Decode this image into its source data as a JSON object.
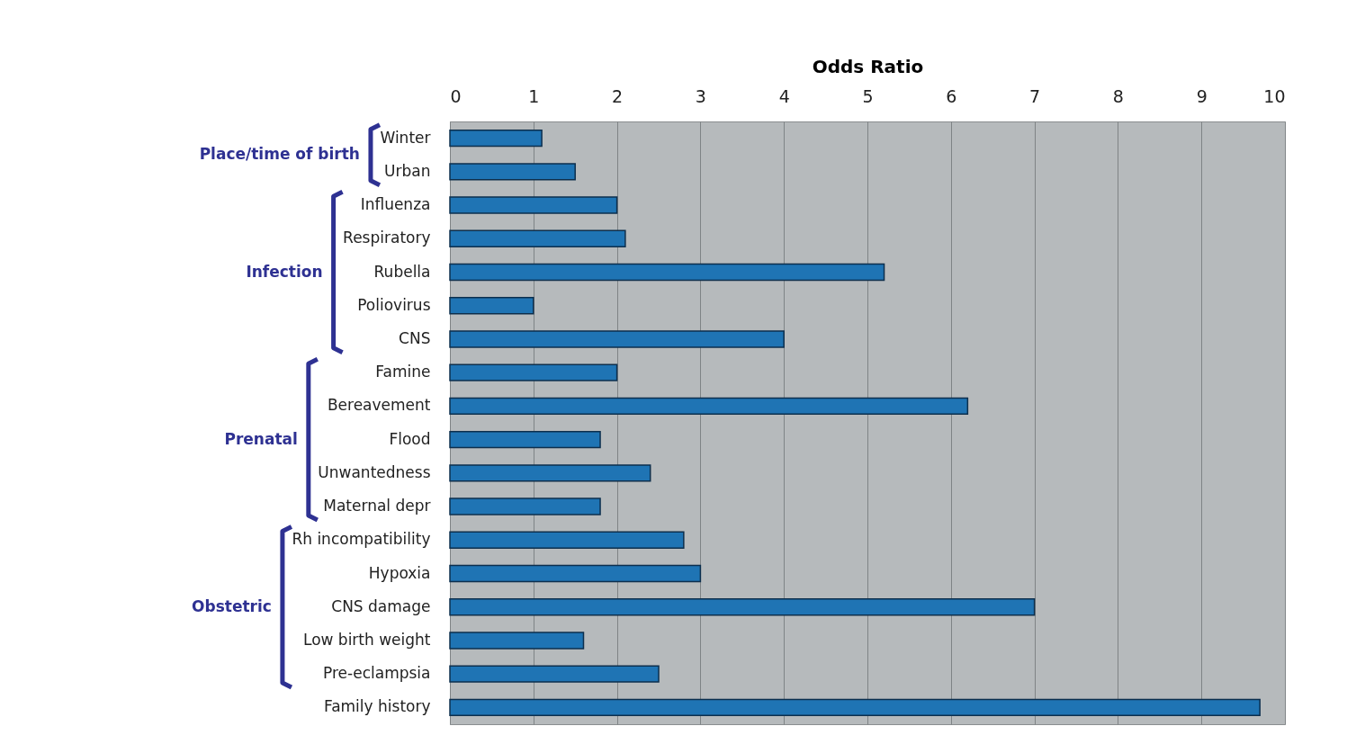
{
  "chart_data": {
    "type": "bar",
    "orientation": "horizontal",
    "xlabel": "Odds Ratio",
    "categories": [
      "Winter",
      "Urban",
      "Influenza",
      "Respiratory",
      "Rubella",
      "Poliovirus",
      "CNS",
      "Famine",
      "Bereavement",
      "Flood",
      "Unwantedness",
      "Maternal depr",
      "Rh incompatibility",
      "Hypoxia",
      "CNS damage",
      "Low birth weight",
      "Pre-eclampsia",
      "Family history"
    ],
    "values": [
      1.1,
      1.5,
      2.0,
      2.1,
      5.2,
      1.0,
      4.0,
      2.0,
      6.2,
      1.8,
      2.4,
      1.8,
      2.8,
      3.0,
      7.0,
      1.6,
      2.5,
      9.7
    ],
    "color": "#1f74b4",
    "xlim": [
      0,
      10
    ],
    "xticks": [
      0,
      1,
      2,
      3,
      4,
      5,
      6,
      7,
      8,
      9,
      10
    ],
    "grid": "x",
    "annotations": [
      "Place/time of birth",
      "Infection",
      "Prenatal",
      "Obstetric"
    ]
  }
}
